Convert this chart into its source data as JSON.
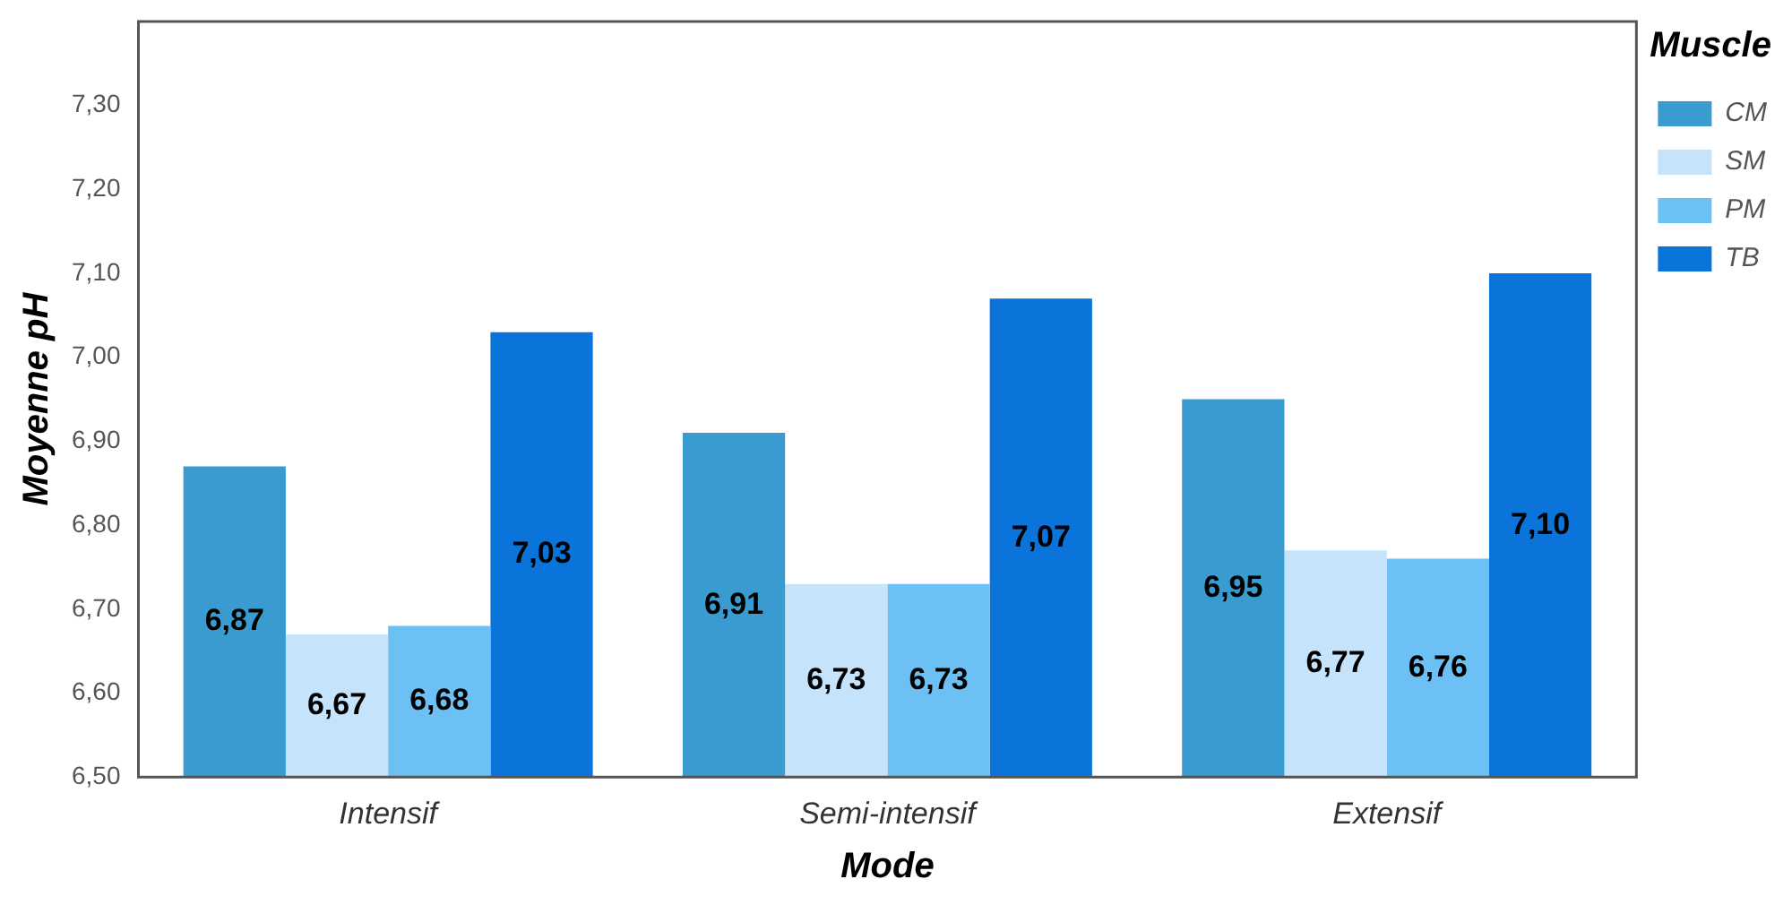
{
  "chart_data": {
    "type": "bar",
    "xlabel": "Mode",
    "ylabel": "Moyenne pH",
    "legend_title": "Muscle",
    "legend": "right",
    "grid": false,
    "categories": [
      "Intensif",
      "Semi-intensif",
      "Extensif"
    ],
    "ylim": [
      6.5,
      7.4
    ],
    "yticks": [
      {
        "value": 6.5,
        "label": "6,50"
      },
      {
        "value": 6.6,
        "label": "6,60"
      },
      {
        "value": 6.7,
        "label": "6,70"
      },
      {
        "value": 6.8,
        "label": "6,80"
      },
      {
        "value": 6.9,
        "label": "6,90"
      },
      {
        "value": 7.0,
        "label": "7,00"
      },
      {
        "value": 7.1,
        "label": "7,10"
      },
      {
        "value": 7.2,
        "label": "7,20"
      },
      {
        "value": 7.3,
        "label": "7,30"
      }
    ],
    "series": [
      {
        "name": "CM",
        "color": "#3a9bd0",
        "values": [
          6.87,
          6.91,
          6.95
        ],
        "value_labels": [
          "6,87",
          "6,91",
          "6,95"
        ]
      },
      {
        "name": "SM",
        "color": "#c5e3fa",
        "values": [
          6.67,
          6.73,
          6.77
        ],
        "value_labels": [
          "6,67",
          "6,73",
          "6,77"
        ]
      },
      {
        "name": "PM",
        "color": "#6cc0f3",
        "values": [
          6.68,
          6.73,
          6.76
        ],
        "value_labels": [
          "6,68",
          "6,73",
          "6,76"
        ]
      },
      {
        "name": "TB",
        "color": "#0b74db",
        "values": [
          7.03,
          7.07,
          7.1
        ],
        "value_labels": [
          "7,03",
          "7,07",
          "7,10"
        ]
      }
    ]
  }
}
